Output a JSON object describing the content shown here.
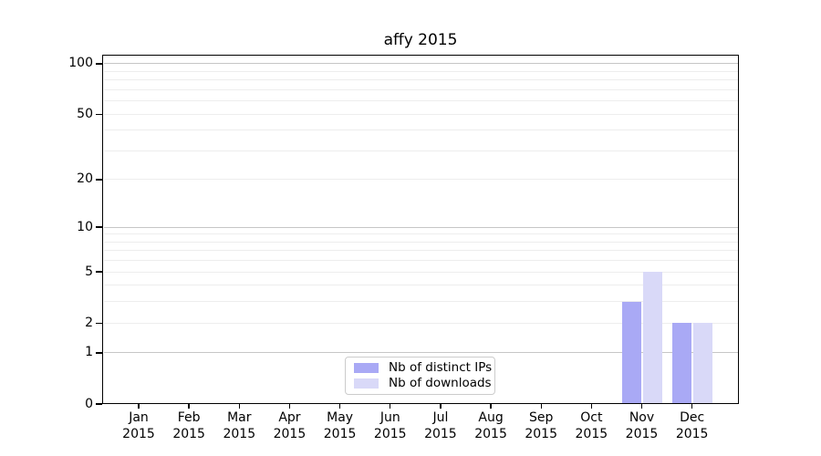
{
  "title": "affy 2015",
  "chart_data": {
    "type": "bar",
    "title": "affy 2015",
    "y_scale": "log10(value+1)",
    "ylim": [
      0,
      113
    ],
    "y_ticks": [
      0,
      1,
      2,
      5,
      10,
      20,
      50,
      100
    ],
    "major_gridlines": [
      1,
      10,
      100
    ],
    "minor_gridlines": [
      2,
      3,
      4,
      5,
      6,
      7,
      8,
      9,
      20,
      30,
      40,
      50,
      60,
      70,
      80,
      90
    ],
    "months": [
      "Jan",
      "Feb",
      "Mar",
      "Apr",
      "May",
      "Jun",
      "Jul",
      "Aug",
      "Sep",
      "Oct",
      "Nov",
      "Dec"
    ],
    "year": "2015",
    "series": [
      {
        "name": "Nb of distinct IPs",
        "color": "#a9a9f5",
        "values": [
          0,
          0,
          0,
          0,
          0,
          0,
          0,
          0,
          0,
          0,
          3,
          2
        ]
      },
      {
        "name": "Nb of downloads",
        "color": "#d9d9f8",
        "values": [
          0,
          0,
          0,
          0,
          0,
          0,
          0,
          0,
          0,
          0,
          5,
          2
        ]
      }
    ],
    "legend_position": "lower center",
    "grid": "on"
  },
  "colors": {
    "spine": "#000000",
    "major_grid": "#c6c6c6",
    "minor_grid": "#ededed",
    "background": "#ffffff",
    "legend_border": "#cccccc"
  }
}
